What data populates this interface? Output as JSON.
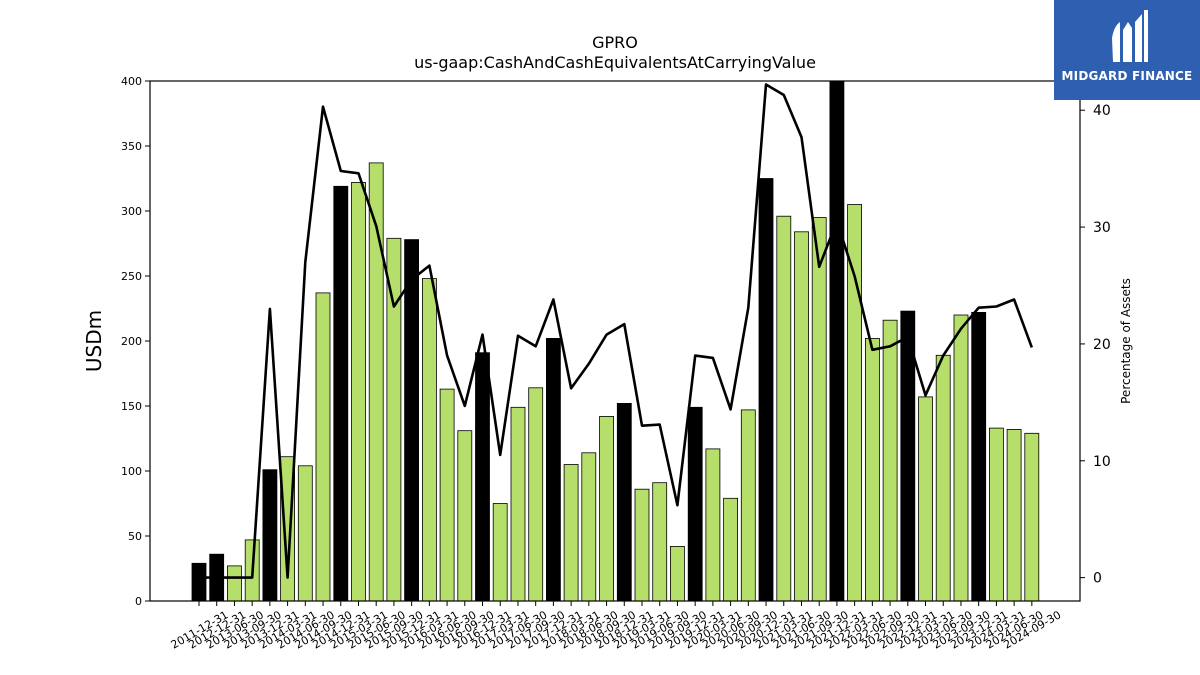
{
  "chart_data": {
    "type": "bar",
    "title": "GPRO",
    "subtitle": "us-gaap:CashAndCashEquivalentsAtCarryingValue",
    "ylabel": "USDm",
    "y2label": "Percentage of Assets",
    "ylim": [
      0,
      400
    ],
    "y2lim": [
      -2,
      42.5
    ],
    "yticks": [
      0,
      50,
      100,
      150,
      200,
      250,
      300,
      350,
      400
    ],
    "y2ticks": [
      0,
      10,
      20,
      30,
      40
    ],
    "colors": {
      "annual": "#000000",
      "quarter": "#b5de6b",
      "line": "#000000"
    },
    "categories": [
      "2011-12-31",
      "2012-12-31",
      "2013-06-30",
      "2013-09-30",
      "2013-12-31",
      "2014-03-31",
      "2014-06-30",
      "2014-09-30",
      "2014-12-31",
      "2015-03-31",
      "2015-06-30",
      "2015-09-30",
      "2015-12-31",
      "2016-03-31",
      "2016-06-30",
      "2016-09-30",
      "2016-12-31",
      "2017-03-31",
      "2017-06-30",
      "2017-09-30",
      "2017-12-31",
      "2018-03-31",
      "2018-06-30",
      "2018-09-30",
      "2018-12-31",
      "2019-03-31",
      "2019-06-30",
      "2019-09-30",
      "2019-12-31",
      "2020-03-31",
      "2020-06-30",
      "2020-09-30",
      "2020-12-31",
      "2021-03-31",
      "2021-06-30",
      "2021-09-30",
      "2021-12-31",
      "2022-03-31",
      "2022-06-30",
      "2022-09-30",
      "2022-12-31",
      "2023-03-31",
      "2023-06-30",
      "2023-09-30",
      "2023-12-31",
      "2024-03-31",
      "2024-06-30",
      "2024-09-30"
    ],
    "values": [
      29,
      36,
      27,
      47,
      101,
      111,
      104,
      237,
      319,
      322,
      337,
      279,
      278,
      248,
      163,
      131,
      191,
      75,
      149,
      164,
      202,
      105,
      114,
      142,
      152,
      86,
      91,
      42,
      149,
      117,
      79,
      147,
      325,
      296,
      284,
      295,
      400,
      305,
      202,
      216,
      223,
      157,
      189,
      220,
      222,
      133,
      132,
      129
    ],
    "annual": [
      true,
      true,
      false,
      false,
      true,
      false,
      false,
      false,
      true,
      false,
      false,
      false,
      true,
      false,
      false,
      false,
      true,
      false,
      false,
      false,
      true,
      false,
      false,
      false,
      true,
      false,
      false,
      false,
      true,
      false,
      false,
      false,
      true,
      false,
      false,
      false,
      true,
      false,
      false,
      false,
      true,
      false,
      false,
      false,
      true,
      false,
      false,
      false
    ],
    "pct_assets": [
      0,
      0,
      0,
      0,
      23,
      0,
      27,
      40.3,
      34.8,
      34.6,
      30.1,
      23.2,
      25.5,
      26.7,
      19,
      14.7,
      20.8,
      10.5,
      20.7,
      19.8,
      23.8,
      16.2,
      18.3,
      20.8,
      21.7,
      13,
      13.1,
      6.2,
      19,
      18.8,
      14.4,
      23.1,
      42.2,
      41.3,
      37.7,
      26.6,
      30.5,
      25.8,
      19.5,
      19.8,
      20.6,
      15.6,
      19,
      21.3,
      23.1,
      23.2,
      23.8,
      19.7
    ]
  },
  "logo": {
    "text": "MIDGARD FINANCE"
  }
}
